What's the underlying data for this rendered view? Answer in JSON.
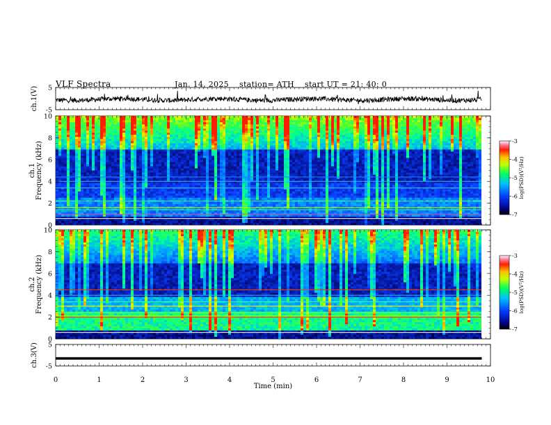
{
  "header": {
    "title": "VLF  Spectra",
    "date": "Jan. 14, 2025",
    "station": "station= ATH",
    "start": "start  UT  =   21: 40: 0"
  },
  "chart_data": [
    {
      "type": "line",
      "ylabel": "ch.1(V)",
      "ylim": [
        -5,
        5
      ],
      "y_ticks": [
        "5",
        "-5"
      ],
      "x_range_min": [
        0,
        9.8
      ],
      "description_values": "noisy waveform around -0.5 V"
    },
    {
      "type": "heatmap",
      "channel_label": "ch.1",
      "ylabel": "Frequency  (kHz)",
      "ylim": [
        0,
        10
      ],
      "y_ticks": [
        "10",
        "8",
        "6",
        "4",
        "2",
        "0"
      ],
      "colorbar": {
        "label": "log(PSD)(V²/Hz)",
        "range": [
          -7,
          -3
        ],
        "ticks": [
          "-3",
          "-4",
          "-5",
          "-6",
          "-7"
        ]
      }
    },
    {
      "type": "heatmap",
      "channel_label": "ch.2",
      "ylabel": "Frequency  (kHz)",
      "ylim": [
        0,
        10
      ],
      "y_ticks": [
        "10",
        "8",
        "6",
        "4",
        "2",
        "0"
      ],
      "colorbar": {
        "label": "log(PSD)(V²/Hz)",
        "range": [
          -7,
          -3
        ],
        "ticks": [
          "-3",
          "-4",
          "-5",
          "-6",
          "-7"
        ]
      }
    },
    {
      "type": "line",
      "ylabel": "ch.3(V)",
      "ylim": [
        -5,
        5
      ],
      "y_ticks": [
        "5",
        "-5"
      ],
      "values_constant": -1.5
    }
  ],
  "xaxis": {
    "label": "Time  (min)",
    "range": [
      0,
      10
    ],
    "ticks": [
      "0",
      "1",
      "2",
      "3",
      "4",
      "5",
      "6",
      "7",
      "8",
      "9",
      "10"
    ]
  },
  "colors": {
    "spectrogram_low": "#00004a",
    "spectrogram_mid": "#2060ff",
    "spectrogram_high": "#30ff40",
    "waveform": "#000000"
  }
}
